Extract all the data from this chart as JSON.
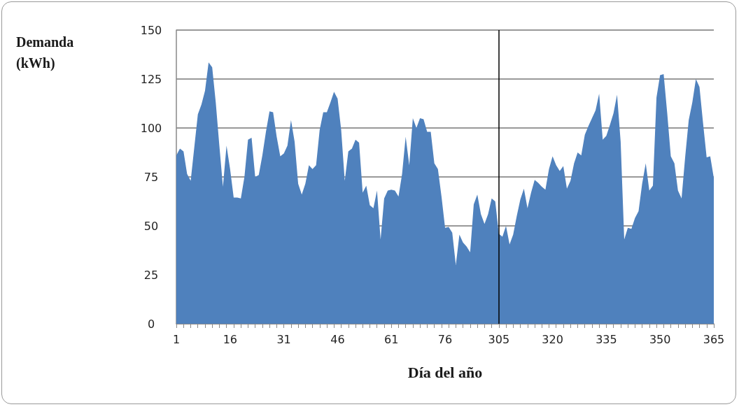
{
  "chart_data": {
    "type": "area",
    "xlabel": "Día del año",
    "ylabel": "Demanda (kWh)",
    "categories": [
      "1",
      null,
      null,
      null,
      null,
      null,
      null,
      null,
      null,
      null,
      null,
      null,
      null,
      null,
      null,
      "16",
      null,
      null,
      null,
      null,
      null,
      null,
      null,
      null,
      null,
      null,
      null,
      null,
      null,
      null,
      "31",
      null,
      null,
      null,
      null,
      null,
      null,
      null,
      null,
      null,
      null,
      null,
      null,
      null,
      null,
      "46",
      null,
      null,
      null,
      null,
      null,
      null,
      null,
      null,
      null,
      null,
      null,
      null,
      null,
      null,
      "61",
      null,
      null,
      null,
      null,
      null,
      null,
      null,
      null,
      null,
      null,
      null,
      null,
      null,
      null,
      "76",
      null,
      null,
      null,
      null,
      null,
      null,
      null,
      null,
      null,
      null,
      null,
      null,
      null,
      null,
      "305",
      null,
      null,
      null,
      null,
      null,
      null,
      null,
      null,
      null,
      null,
      null,
      null,
      null,
      null,
      "320",
      null,
      null,
      null,
      null,
      null,
      null,
      null,
      null,
      null,
      null,
      null,
      null,
      null,
      null,
      "335",
      null,
      null,
      null,
      null,
      null,
      null,
      null,
      null,
      null,
      null,
      null,
      null,
      null,
      null,
      "350",
      null,
      null,
      null,
      null,
      null,
      null,
      null,
      null,
      null,
      null,
      null,
      null,
      null,
      null,
      "365"
    ],
    "values": [
      86,
      89.5,
      88,
      76.5,
      73,
      90,
      107,
      112,
      119,
      133.5,
      131,
      113,
      91,
      70,
      91,
      79,
      64.5,
      64.5,
      64,
      75,
      94,
      95,
      75,
      76,
      86,
      98,
      108.5,
      108,
      95.5,
      85.5,
      87,
      91,
      104,
      93,
      71.5,
      66,
      71.5,
      81,
      79,
      81,
      99,
      108,
      108,
      113,
      118.5,
      115,
      99,
      73,
      88,
      89.5,
      94,
      92.5,
      67,
      70.5,
      60.5,
      59,
      68,
      43,
      64,
      68,
      68.5,
      68,
      65,
      76.5,
      95.5,
      81,
      105,
      100,
      105,
      104.5,
      98,
      98,
      82,
      79,
      65,
      49,
      49.5,
      46.5,
      30,
      45.5,
      41.5,
      39.5,
      36.5,
      61,
      66,
      56,
      51,
      56,
      64,
      62.5,
      46,
      44.5,
      50,
      40.5,
      45.5,
      55,
      63.5,
      69,
      59,
      67,
      73.5,
      72,
      70,
      68.5,
      79,
      85.5,
      81,
      78,
      80.5,
      69,
      73,
      82,
      87.5,
      86,
      96.5,
      101,
      105,
      109,
      117.5,
      94,
      96,
      101.5,
      107.5,
      117,
      93,
      43,
      49,
      48.5,
      54,
      57.5,
      71.5,
      82,
      68,
      70.5,
      115.5,
      127,
      127.5,
      107.5,
      85.5,
      82,
      68,
      64,
      85,
      104,
      113,
      125,
      121,
      102.5,
      85,
      85.5,
      74.5
    ],
    "color": "#4f81bd",
    "ylim": [
      0,
      150
    ],
    "yticks": [
      0,
      25,
      50,
      75,
      100,
      125,
      150
    ],
    "grid": "y",
    "ref_lines": [
      {
        "axis": "x",
        "value": "305",
        "color": "#000000"
      }
    ]
  }
}
